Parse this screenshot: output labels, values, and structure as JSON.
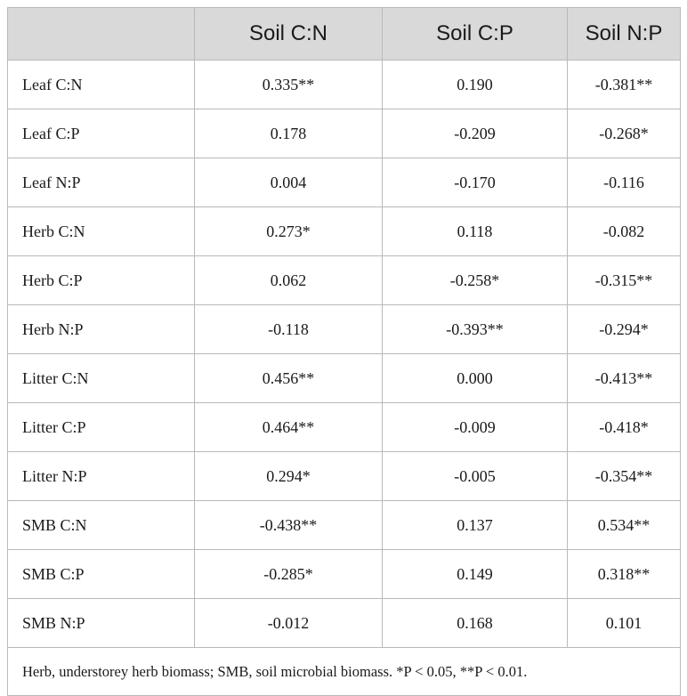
{
  "table": {
    "headers": [
      "",
      "Soil C:N",
      "Soil C:P",
      "Soil N:P"
    ],
    "rows": [
      [
        "Leaf C:N",
        "0.335**",
        "0.190",
        "-0.381**"
      ],
      [
        "Leaf C:P",
        "0.178",
        "-0.209",
        "-0.268*"
      ],
      [
        "Leaf N:P",
        "0.004",
        "-0.170",
        "-0.116"
      ],
      [
        "Herb C:N",
        "0.273*",
        "0.118",
        "-0.082"
      ],
      [
        "Herb C:P",
        "0.062",
        "-0.258*",
        "-0.315**"
      ],
      [
        "Herb N:P",
        "-0.118",
        "-0.393**",
        "-0.294*"
      ],
      [
        "Litter C:N",
        "0.456**",
        "0.000",
        "-0.413**"
      ],
      [
        "Litter C:P",
        "0.464**",
        "-0.009",
        "-0.418*"
      ],
      [
        "Litter N:P",
        "0.294*",
        "-0.005",
        "-0.354**"
      ],
      [
        "SMB C:N",
        "-0.438**",
        "0.137",
        "0.534**"
      ],
      [
        "SMB C:P",
        "-0.285*",
        "0.149",
        "0.318**"
      ],
      [
        "SMB N:P",
        "-0.012",
        "0.168",
        "0.101"
      ]
    ],
    "footnote": "Herb, understorey herb biomass; SMB, soil microbial biomass. *P < 0.05, **P < 0.01."
  }
}
